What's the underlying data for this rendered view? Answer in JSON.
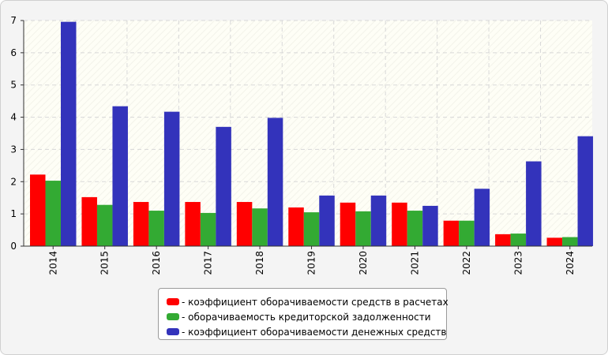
{
  "chart_data": {
    "type": "bar",
    "categories": [
      "2014",
      "2015",
      "2016",
      "2017",
      "2018",
      "2019",
      "2020",
      "2021",
      "2022",
      "2023",
      "2024"
    ],
    "series": [
      {
        "name": "- коэффициент оборачиваемости средств в расчетах",
        "color": "#ff0000",
        "values": [
          2.22,
          1.52,
          1.37,
          1.37,
          1.37,
          1.2,
          1.35,
          1.35,
          0.79,
          0.37,
          0.26
        ]
      },
      {
        "name": "- оборачиваемость кредиторской задолженности",
        "color": "#33aa33",
        "values": [
          2.03,
          1.28,
          1.1,
          1.03,
          1.17,
          1.05,
          1.08,
          1.1,
          0.79,
          0.39,
          0.28
        ]
      },
      {
        "name": "- коэффициент оборачиваемости денежных средств",
        "color": "#3333bb",
        "values": [
          6.96,
          4.34,
          4.17,
          3.7,
          3.98,
          1.57,
          1.57,
          1.25,
          1.78,
          2.63,
          3.41
        ]
      }
    ],
    "ylim": [
      0,
      7
    ],
    "yticks": [
      "0",
      "1",
      "2",
      "3",
      "4",
      "5",
      "6",
      "7"
    ],
    "grid": true,
    "legend": "bottom",
    "xlabel": "",
    "ylabel": "",
    "title": ""
  }
}
